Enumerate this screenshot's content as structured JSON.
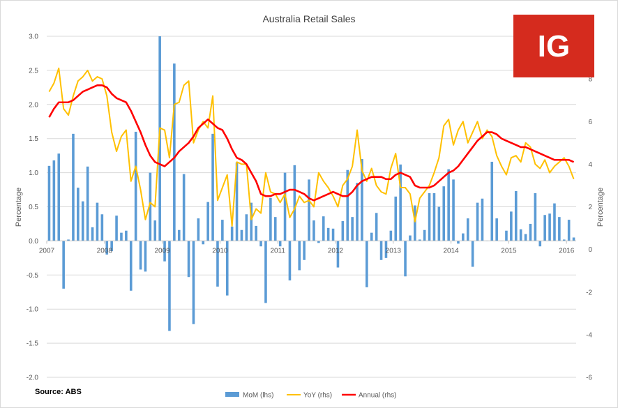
{
  "chart_data": {
    "type": "bar",
    "title": "Australia Retail Sales",
    "ylabel": "Percentage",
    "y2label": "Percentage",
    "ylim": [
      -2.0,
      3.0
    ],
    "y2lim": [
      -6,
      10
    ],
    "yticks": [
      "3.0",
      "2.5",
      "2.0",
      "1.5",
      "1.0",
      "0.5",
      "0.0",
      "-0.5",
      "-1.0",
      "-1.5",
      "-2.0"
    ],
    "y2ticks": [
      "8",
      "6",
      "4",
      "2",
      "0",
      "-2",
      "-4",
      "-6"
    ],
    "year_labels": [
      "2007",
      "2008",
      "2009",
      "2010",
      "2011",
      "2012",
      "2013",
      "2014",
      "2015",
      "2016"
    ],
    "x_start": "2007-01",
    "grid": true,
    "legend_position": "bottom",
    "source": "Source: ABS",
    "logo_text": "IG",
    "colors": {
      "mom": "#5b9bd5",
      "yoy": "#ffc000",
      "annual": "#ff0000",
      "logo_bg": "#d52b1e"
    },
    "series": [
      {
        "name": "MoM (lhs)",
        "axis": "lhs",
        "type": "bar",
        "values": [
          1.1,
          1.18,
          1.28,
          -0.7,
          0.02,
          1.57,
          0.78,
          0.58,
          1.09,
          0.2,
          0.56,
          0.39,
          -0.2,
          -0.15,
          0.37,
          0.12,
          0.15,
          -0.73,
          1.6,
          -0.42,
          -0.45,
          1.0,
          0.3,
          3.0,
          -0.3,
          -1.32,
          2.6,
          0.16,
          0.98,
          -0.53,
          -1.22,
          0.33,
          -0.05,
          0.57,
          1.57,
          -0.67,
          0.31,
          -0.8,
          0.21,
          1.15,
          0.16,
          0.39,
          0.56,
          0.22,
          -0.08,
          -0.91,
          0.63,
          0.35,
          -0.08,
          1.0,
          -0.58,
          1.11,
          -0.43,
          -0.28,
          0.9,
          0.3,
          -0.03,
          0.36,
          0.19,
          0.18,
          -0.39,
          0.29,
          1.04,
          0.35,
          0.85,
          1.2,
          -0.68,
          0.12,
          0.41,
          -0.28,
          -0.25,
          0.15,
          0.65,
          1.12,
          -0.52,
          0.08,
          0.52,
          0.02,
          0.16,
          0.7,
          0.7,
          0.5,
          0.8,
          1.05,
          0.9,
          -0.04,
          0.11,
          0.33,
          -0.38,
          0.56,
          0.62,
          0.0,
          1.16,
          0.33,
          0.0,
          0.15,
          0.43,
          0.73,
          0.17,
          0.1,
          0.25,
          0.7,
          -0.08,
          0.38,
          0.4,
          0.55,
          0.35,
          0.02,
          0.31,
          0.05
        ]
      },
      {
        "name": "YoY (rhs)",
        "axis": "rhs",
        "type": "line",
        "values": [
          7.4,
          7.8,
          8.5,
          6.6,
          6.3,
          7.2,
          7.9,
          8.1,
          8.4,
          7.9,
          8.1,
          8.0,
          7.2,
          5.5,
          4.6,
          5.3,
          5.6,
          3.2,
          3.9,
          2.8,
          1.4,
          2.2,
          2.0,
          5.7,
          5.6,
          4.3,
          6.8,
          6.9,
          7.7,
          7.9,
          5.0,
          5.6,
          6.0,
          5.7,
          7.2,
          2.3,
          2.9,
          3.5,
          1.1,
          4.1,
          4.0,
          4.0,
          1.4,
          1.9,
          1.7,
          3.6,
          2.7,
          2.6,
          2.2,
          2.6,
          1.5,
          1.9,
          2.5,
          2.2,
          2.3,
          2.0,
          3.6,
          3.2,
          2.9,
          2.5,
          2.0,
          3.0,
          3.3,
          3.9,
          5.6,
          3.7,
          3.2,
          3.8,
          3.0,
          2.7,
          2.6,
          3.8,
          4.5,
          2.9,
          2.9,
          2.6,
          1.3,
          2.4,
          2.7,
          3.0,
          3.6,
          4.3,
          5.8,
          6.1,
          4.9,
          5.6,
          6.0,
          5.0,
          5.5,
          6.0,
          5.2,
          5.6,
          5.3,
          4.4,
          3.9,
          3.5,
          4.3,
          4.4,
          4.1,
          5.0,
          4.8,
          4.0,
          3.8,
          4.2,
          3.6,
          3.9,
          4.1,
          4.3,
          3.9,
          3.3
        ]
      },
      {
        "name": "Annual (rhs)",
        "axis": "rhs",
        "type": "line",
        "values": [
          6.2,
          6.6,
          6.9,
          6.9,
          6.9,
          7.0,
          7.2,
          7.4,
          7.5,
          7.6,
          7.7,
          7.7,
          7.6,
          7.3,
          7.1,
          7.0,
          6.9,
          6.5,
          6.0,
          5.5,
          4.9,
          4.4,
          4.1,
          4.0,
          3.9,
          4.1,
          4.3,
          4.6,
          4.8,
          5.0,
          5.3,
          5.7,
          5.9,
          6.1,
          5.9,
          5.7,
          5.6,
          5.2,
          4.7,
          4.3,
          4.2,
          4.0,
          3.6,
          3.2,
          2.6,
          2.5,
          2.5,
          2.6,
          2.6,
          2.7,
          2.8,
          2.8,
          2.7,
          2.6,
          2.4,
          2.3,
          2.4,
          2.5,
          2.6,
          2.7,
          2.6,
          2.5,
          2.5,
          2.7,
          3.0,
          3.2,
          3.3,
          3.4,
          3.4,
          3.4,
          3.3,
          3.3,
          3.5,
          3.6,
          3.5,
          3.4,
          3.0,
          2.9,
          2.9,
          2.9,
          3.0,
          3.2,
          3.4,
          3.6,
          3.7,
          3.9,
          4.2,
          4.5,
          4.8,
          5.1,
          5.3,
          5.5,
          5.5,
          5.4,
          5.2,
          5.1,
          5.0,
          4.9,
          4.8,
          4.8,
          4.7,
          4.6,
          4.5,
          4.4,
          4.3,
          4.2,
          4.2,
          4.2,
          4.2,
          4.1
        ]
      }
    ]
  }
}
